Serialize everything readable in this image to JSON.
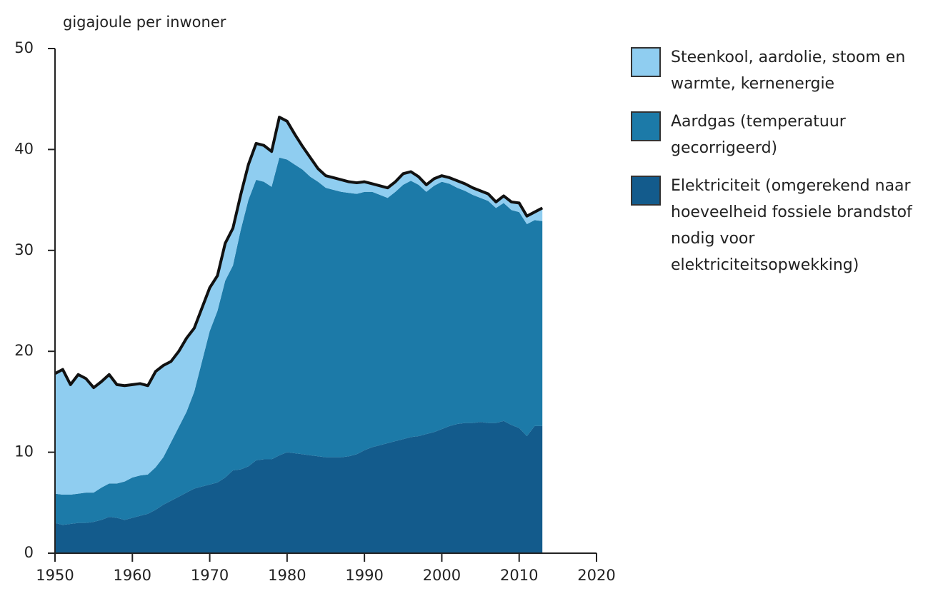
{
  "chart_data": {
    "type": "stacked-area",
    "y_axis_label": "gigajoule per inwoner",
    "x": [
      1950,
      1951,
      1952,
      1953,
      1954,
      1955,
      1956,
      1957,
      1958,
      1959,
      1960,
      1961,
      1962,
      1963,
      1964,
      1965,
      1966,
      1967,
      1968,
      1969,
      1970,
      1971,
      1972,
      1973,
      1974,
      1975,
      1976,
      1977,
      1978,
      1979,
      1980,
      1981,
      1982,
      1983,
      1984,
      1985,
      1986,
      1987,
      1988,
      1989,
      1990,
      1991,
      1992,
      1993,
      1994,
      1995,
      1996,
      1997,
      1998,
      1999,
      2000,
      2001,
      2002,
      2003,
      2004,
      2005,
      2006,
      2007,
      2008,
      2009,
      2010,
      2011,
      2012,
      2013
    ],
    "series": [
      {
        "name": "Elektriciteit (omgerekend naar hoeveelheid fossiele brandstof nodig voor elektriciteitsopwekking)",
        "color": "#135b8c",
        "values": [
          3.0,
          2.8,
          2.9,
          3.0,
          3.0,
          3.1,
          3.3,
          3.6,
          3.5,
          3.3,
          3.5,
          3.7,
          3.9,
          4.3,
          4.8,
          5.2,
          5.6,
          6.0,
          6.4,
          6.6,
          6.8,
          7.0,
          7.5,
          8.2,
          8.3,
          8.6,
          9.2,
          9.3,
          9.3,
          9.7,
          10.0,
          9.9,
          9.8,
          9.7,
          9.6,
          9.5,
          9.5,
          9.5,
          9.6,
          9.8,
          10.2,
          10.5,
          10.7,
          10.9,
          11.1,
          11.3,
          11.5,
          11.6,
          11.8,
          12.0,
          12.3,
          12.6,
          12.8,
          12.9,
          12.9,
          13.0,
          12.9,
          12.9,
          13.1,
          12.7,
          12.4,
          11.6,
          12.6,
          12.6
        ]
      },
      {
        "name": "Aardgas (temperatuur gecorrigeerd)",
        "color": "#1c7aa8",
        "values": [
          2.9,
          3.0,
          2.9,
          2.9,
          3.0,
          2.9,
          3.2,
          3.3,
          3.4,
          3.8,
          4.0,
          4.0,
          3.9,
          4.2,
          4.7,
          5.8,
          6.9,
          8.0,
          9.6,
          12.4,
          15.2,
          17.0,
          19.5,
          20.3,
          23.7,
          26.4,
          27.8,
          27.5,
          27.0,
          29.5,
          29.0,
          28.6,
          28.2,
          27.6,
          27.2,
          26.7,
          26.5,
          26.3,
          26.1,
          25.8,
          25.6,
          25.3,
          24.8,
          24.3,
          24.7,
          25.2,
          25.4,
          24.9,
          24.0,
          24.4,
          24.5,
          24.0,
          23.4,
          23.0,
          22.6,
          22.2,
          22.0,
          21.3,
          21.6,
          21.3,
          21.4,
          21.0,
          20.4,
          20.3
        ]
      },
      {
        "name": "Steenkool, aardolie, stoom en warmte, kernenergie",
        "color": "#8fcdf0",
        "values": [
          11.9,
          12.4,
          10.9,
          11.8,
          11.3,
          10.4,
          10.5,
          10.8,
          9.8,
          9.5,
          9.2,
          9.1,
          8.8,
          9.5,
          9.1,
          8.0,
          7.5,
          7.3,
          6.3,
          5.3,
          4.3,
          3.5,
          3.7,
          3.7,
          3.5,
          3.5,
          3.6,
          3.6,
          3.5,
          4.0,
          3.8,
          3.0,
          2.3,
          1.9,
          1.3,
          1.2,
          1.2,
          1.2,
          1.1,
          1.1,
          1.0,
          0.8,
          0.9,
          1.0,
          1.0,
          1.1,
          0.9,
          0.8,
          0.7,
          0.7,
          0.6,
          0.6,
          0.7,
          0.7,
          0.7,
          0.7,
          0.7,
          0.6,
          0.7,
          0.8,
          0.9,
          0.8,
          0.8,
          1.3
        ]
      }
    ],
    "xlim": [
      1950,
      2020
    ],
    "xticks": [
      1950,
      1960,
      1970,
      1980,
      1990,
      2000,
      2010,
      2020
    ],
    "ylim": [
      0,
      50
    ],
    "yticks": [
      0,
      10,
      20,
      30,
      40,
      50
    ],
    "outline_color": "#111111"
  }
}
